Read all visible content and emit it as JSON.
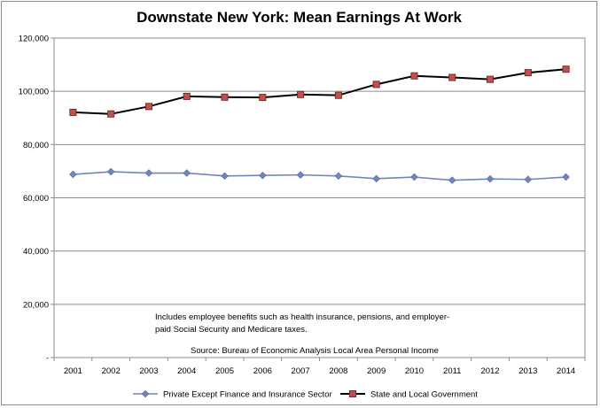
{
  "chart_data": {
    "type": "line",
    "title": "Downstate New York:  Mean Earnings At Work",
    "xlabel": "",
    "ylabel": "",
    "categories": [
      "2001",
      "2002",
      "2003",
      "2004",
      "2005",
      "2006",
      "2007",
      "2008",
      "2009",
      "2010",
      "2011",
      "2012",
      "2013",
      "2014"
    ],
    "ylim": [
      0,
      120000
    ],
    "yticks": [
      0,
      20000,
      40000,
      60000,
      80000,
      100000,
      120000
    ],
    "ytick_labels": [
      "-",
      "20,000",
      "40,000",
      "60,000",
      "80,000",
      "100,000",
      "120,000"
    ],
    "grid": "horizontal major gridlines",
    "legend_position": "bottom",
    "series": [
      {
        "name": "Private Except Finance and Insurance Sector",
        "color": "#7286be",
        "marker": "diamond",
        "values": [
          68800,
          69800,
          69300,
          69300,
          68200,
          68400,
          68600,
          68200,
          67200,
          67800,
          66600,
          67100,
          66900,
          67800
        ]
      },
      {
        "name": "State and Local Government",
        "color": "#000000",
        "marker_color": "#c0504d",
        "marker": "square",
        "values": [
          92100,
          91500,
          94300,
          98100,
          97800,
          97700,
          98800,
          98500,
          102600,
          105800,
          105200,
          104500,
          107000,
          108300
        ]
      }
    ],
    "annotations": {
      "note_line1": "Includes employee benefits such as health insurance, pensions, and employer-",
      "note_line2": "paid Social Security and Medicare taxes.",
      "source": "Source:  Bureau of Economic Analysis Local Area Personal Income"
    }
  }
}
